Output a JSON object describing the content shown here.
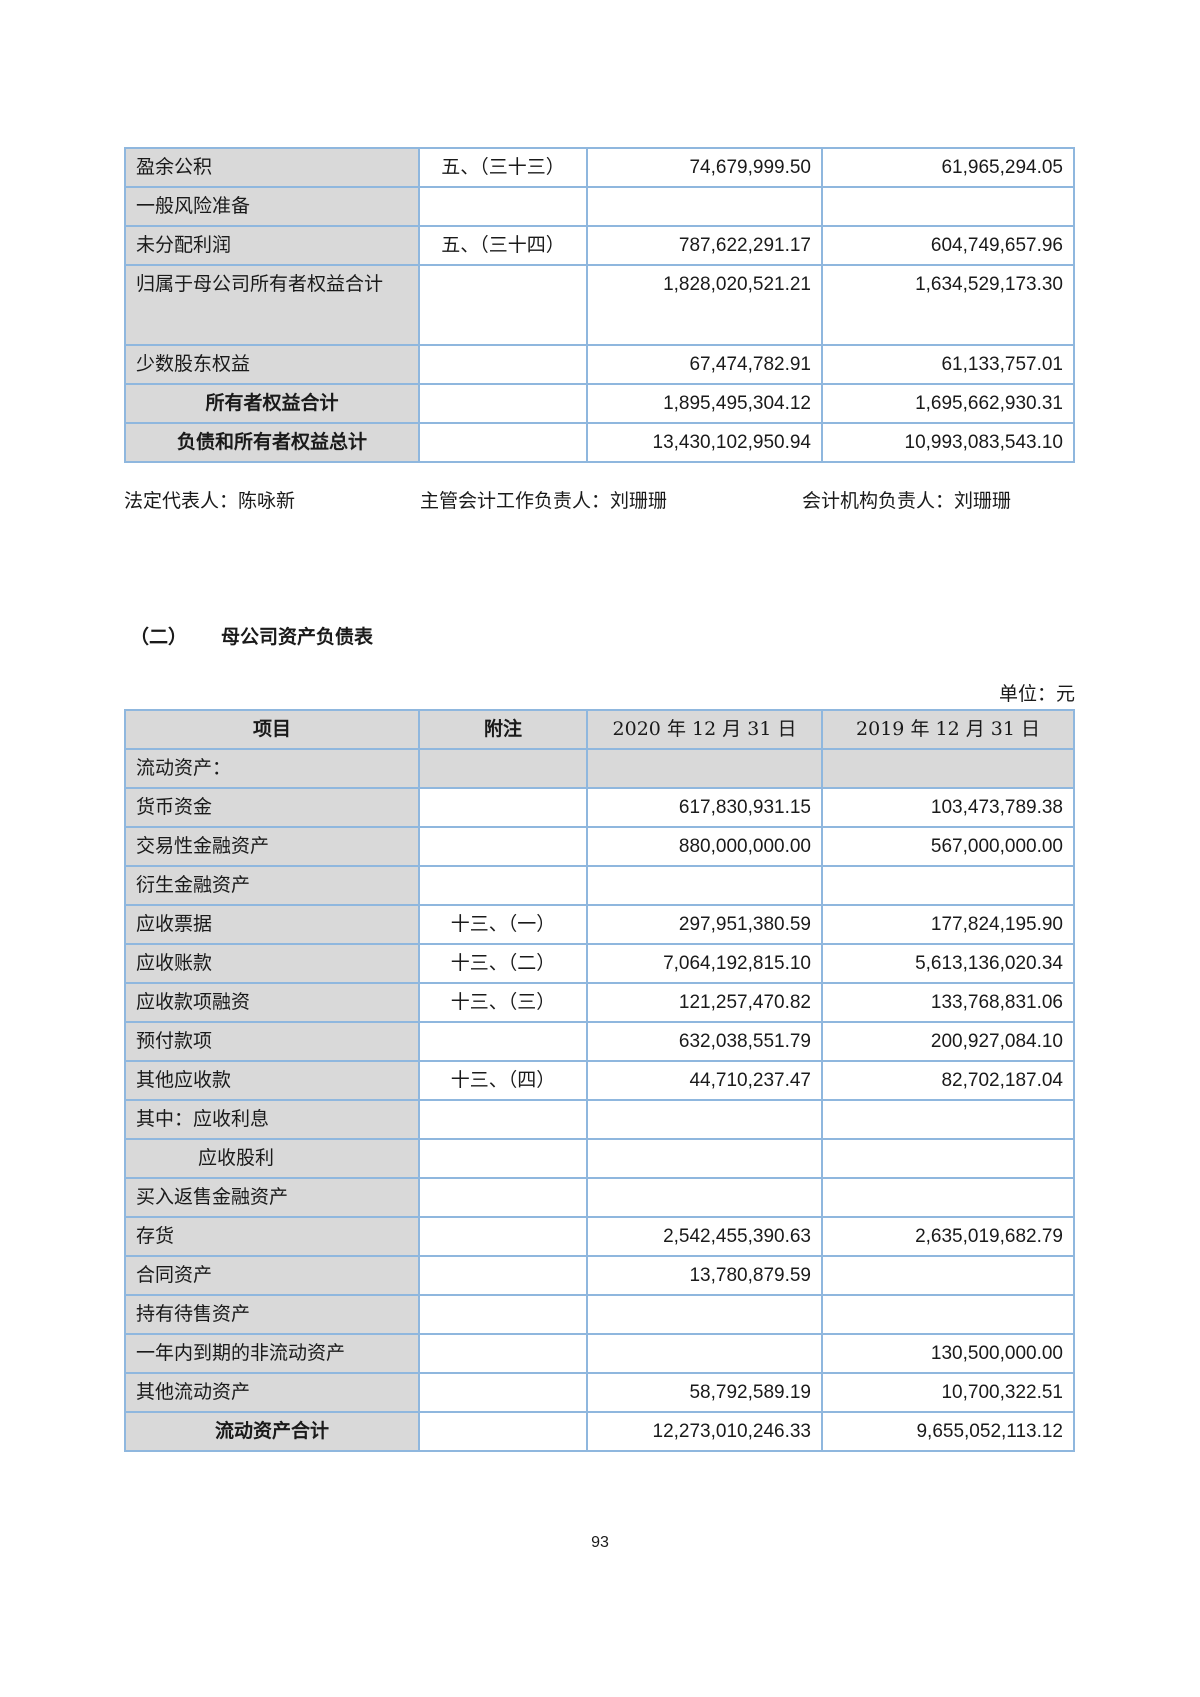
{
  "top_table": {
    "rows": [
      {
        "item": "盈余公积",
        "note": "五、（三十三）",
        "y2020": "74,679,999.50",
        "y2019": "61,965,294.05"
      },
      {
        "item": "一般风险准备",
        "note": "",
        "y2020": "",
        "y2019": ""
      },
      {
        "item": "未分配利润",
        "note": "五、（三十四）",
        "y2020": "787,622,291.17",
        "y2019": "604,749,657.96"
      },
      {
        "item": "归属于母公司所有者权益合计",
        "note": "",
        "y2020": "1,828,020,521.21",
        "y2019": "1,634,529,173.30"
      },
      {
        "item": "少数股东权益",
        "note": "",
        "y2020": "67,474,782.91",
        "y2019": "61,133,757.01"
      },
      {
        "item": "所有者权益合计",
        "note": "",
        "y2020": "1,895,495,304.12",
        "y2019": "1,695,662,930.31"
      },
      {
        "item": "负债和所有者权益总计",
        "note": "",
        "y2020": "13,430,102,950.94",
        "y2019": "10,993,083,543.10"
      }
    ]
  },
  "signatures": {
    "legal_rep": "法定代表人：陈咏新",
    "accounting_head": "主管会计工作负责人：刘珊珊",
    "accounting_dept_head": "会计机构负责人：刘珊珊"
  },
  "section": {
    "number": "（二）",
    "title": "母公司资产负债表",
    "unit": "单位：元"
  },
  "main_table": {
    "headers": [
      "项目",
      "附注",
      "2020 年 12 月 31 日",
      "2019 年 12 月 31 日"
    ],
    "rows": [
      {
        "item": "流动资产：",
        "note": "",
        "y2020": "",
        "y2019": ""
      },
      {
        "item": "货币资金",
        "note": "",
        "y2020": "617,830,931.15",
        "y2019": "103,473,789.38"
      },
      {
        "item": "交易性金融资产",
        "note": "",
        "y2020": "880,000,000.00",
        "y2019": "567,000,000.00"
      },
      {
        "item": "衍生金融资产",
        "note": "",
        "y2020": "",
        "y2019": ""
      },
      {
        "item": "应收票据",
        "note": "十三、（一）",
        "y2020": "297,951,380.59",
        "y2019": "177,824,195.90"
      },
      {
        "item": "应收账款",
        "note": "十三、（二）",
        "y2020": "7,064,192,815.10",
        "y2019": "5,613,136,020.34"
      },
      {
        "item": "应收款项融资",
        "note": "十三、（三）",
        "y2020": "121,257,470.82",
        "y2019": "133,768,831.06"
      },
      {
        "item": "预付款项",
        "note": "",
        "y2020": "632,038,551.79",
        "y2019": "200,927,084.10"
      },
      {
        "item": "其他应收款",
        "note": "十三、（四）",
        "y2020": "44,710,237.47",
        "y2019": "82,702,187.04"
      },
      {
        "item": "其中：应收利息",
        "note": "",
        "y2020": "",
        "y2019": ""
      },
      {
        "item": "应收股利",
        "note": "",
        "y2020": "",
        "y2019": ""
      },
      {
        "item": "买入返售金融资产",
        "note": "",
        "y2020": "",
        "y2019": ""
      },
      {
        "item": "存货",
        "note": "",
        "y2020": "2,542,455,390.63",
        "y2019": "2,635,019,682.79"
      },
      {
        "item": "合同资产",
        "note": "",
        "y2020": "13,780,879.59",
        "y2019": ""
      },
      {
        "item": "持有待售资产",
        "note": "",
        "y2020": "",
        "y2019": ""
      },
      {
        "item": "一年内到期的非流动资产",
        "note": "",
        "y2020": "",
        "y2019": "130,500,000.00"
      },
      {
        "item": "其他流动资产",
        "note": "",
        "y2020": "58,792,589.19",
        "y2019": "10,700,322.51"
      },
      {
        "item": "流动资产合计",
        "note": "",
        "y2020": "12,273,010,246.33",
        "y2019": "9,655,052,113.12"
      }
    ]
  },
  "page_number": "93"
}
